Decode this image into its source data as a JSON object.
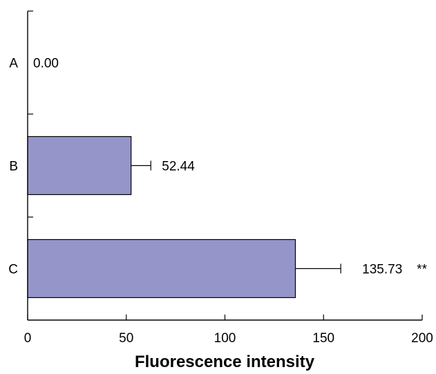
{
  "chart_data": {
    "type": "bar",
    "orientation": "horizontal",
    "categories": [
      "A",
      "B",
      "C"
    ],
    "values": [
      0.0,
      52.44,
      135.73
    ],
    "errors": [
      0,
      10,
      23
    ],
    "data_labels": [
      "0.00",
      "52.44",
      "135.73"
    ],
    "significance": [
      "",
      "",
      "**"
    ],
    "title": "",
    "xlabel": "Fluorescence intensity",
    "ylabel": "",
    "xlim": [
      0,
      200
    ],
    "xticks": [
      0,
      50,
      100,
      150,
      200
    ],
    "xtick_labels": [
      "0",
      "50",
      "100",
      "150",
      "200"
    ],
    "grid": false,
    "legend": "none",
    "colors": {
      "bar_fill": "#9595c9",
      "bar_stroke": "#000000",
      "axis": "#000000"
    }
  }
}
